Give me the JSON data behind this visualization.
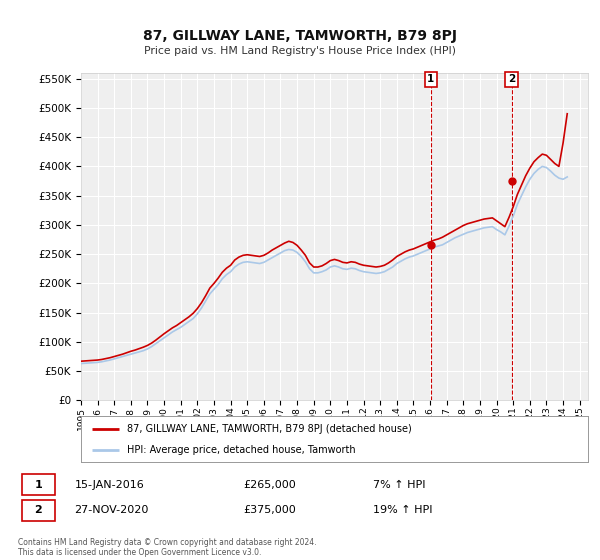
{
  "title": "87, GILLWAY LANE, TAMWORTH, B79 8PJ",
  "subtitle": "Price paid vs. HM Land Registry's House Price Index (HPI)",
  "ytick_values": [
    0,
    50000,
    100000,
    150000,
    200000,
    250000,
    300000,
    350000,
    400000,
    450000,
    500000,
    550000
  ],
  "ylim": [
    0,
    560000
  ],
  "background_color": "#ffffff",
  "plot_bg_color": "#efefef",
  "grid_color": "#ffffff",
  "hpi_color": "#aac8e8",
  "price_color": "#cc0000",
  "transaction1": {
    "date": "15-JAN-2016",
    "price": 265000,
    "label": "1",
    "year": 2016.04
  },
  "transaction2": {
    "date": "27-NOV-2020",
    "price": 375000,
    "label": "2",
    "year": 2020.9
  },
  "legend_label1": "87, GILLWAY LANE, TAMWORTH, B79 8PJ (detached house)",
  "legend_label2": "HPI: Average price, detached house, Tamworth",
  "footer1": "Contains HM Land Registry data © Crown copyright and database right 2024.",
  "footer2": "This data is licensed under the Open Government Licence v3.0.",
  "annotation1_text": "1",
  "annotation2_text": "2",
  "row1_pct": "7% ↑ HPI",
  "row2_pct": "19% ↑ HPI",
  "hpi_data": {
    "years": [
      1995.0,
      1995.25,
      1995.5,
      1995.75,
      1996.0,
      1996.25,
      1996.5,
      1996.75,
      1997.0,
      1997.25,
      1997.5,
      1997.75,
      1998.0,
      1998.25,
      1998.5,
      1998.75,
      1999.0,
      1999.25,
      1999.5,
      1999.75,
      2000.0,
      2000.25,
      2000.5,
      2000.75,
      2001.0,
      2001.25,
      2001.5,
      2001.75,
      2002.0,
      2002.25,
      2002.5,
      2002.75,
      2003.0,
      2003.25,
      2003.5,
      2003.75,
      2004.0,
      2004.25,
      2004.5,
      2004.75,
      2005.0,
      2005.25,
      2005.5,
      2005.75,
      2006.0,
      2006.25,
      2006.5,
      2006.75,
      2007.0,
      2007.25,
      2007.5,
      2007.75,
      2008.0,
      2008.25,
      2008.5,
      2008.75,
      2009.0,
      2009.25,
      2009.5,
      2009.75,
      2010.0,
      2010.25,
      2010.5,
      2010.75,
      2011.0,
      2011.25,
      2011.5,
      2011.75,
      2012.0,
      2012.25,
      2012.5,
      2012.75,
      2013.0,
      2013.25,
      2013.5,
      2013.75,
      2014.0,
      2014.25,
      2014.5,
      2014.75,
      2015.0,
      2015.25,
      2015.5,
      2015.75,
      2016.0,
      2016.25,
      2016.5,
      2016.75,
      2017.0,
      2017.25,
      2017.5,
      2017.75,
      2018.0,
      2018.25,
      2018.5,
      2018.75,
      2019.0,
      2019.25,
      2019.5,
      2019.75,
      2020.0,
      2020.25,
      2020.5,
      2020.75,
      2021.0,
      2021.25,
      2021.5,
      2021.75,
      2022.0,
      2022.25,
      2022.5,
      2022.75,
      2023.0,
      2023.25,
      2023.5,
      2023.75,
      2024.0,
      2024.25
    ],
    "values": [
      63000,
      63500,
      64000,
      64500,
      65000,
      66000,
      67500,
      69000,
      71000,
      73000,
      75000,
      77000,
      79000,
      81000,
      83000,
      85000,
      88000,
      92000,
      97000,
      102000,
      107000,
      112000,
      117000,
      121000,
      125000,
      130000,
      135000,
      140000,
      148000,
      158000,
      170000,
      182000,
      190000,
      198000,
      208000,
      215000,
      220000,
      228000,
      233000,
      236000,
      237000,
      236000,
      235000,
      234000,
      236000,
      240000,
      244000,
      248000,
      252000,
      256000,
      258000,
      257000,
      253000,
      246000,
      237000,
      225000,
      218000,
      218000,
      220000,
      223000,
      228000,
      230000,
      228000,
      225000,
      224000,
      226000,
      225000,
      222000,
      220000,
      219000,
      218000,
      217000,
      218000,
      220000,
      224000,
      228000,
      234000,
      238000,
      242000,
      245000,
      247000,
      250000,
      253000,
      256000,
      259000,
      262000,
      264000,
      266000,
      270000,
      274000,
      278000,
      281000,
      284000,
      287000,
      289000,
      291000,
      293000,
      295000,
      296000,
      297000,
      292000,
      288000,
      283000,
      298000,
      315000,
      335000,
      350000,
      365000,
      378000,
      388000,
      395000,
      400000,
      398000,
      392000,
      385000,
      380000,
      378000,
      382000
    ]
  },
  "price_data": {
    "years": [
      1995.0,
      1995.25,
      1995.5,
      1995.75,
      1996.0,
      1996.25,
      1996.5,
      1996.75,
      1997.0,
      1997.25,
      1997.5,
      1997.75,
      1998.0,
      1998.25,
      1998.5,
      1998.75,
      1999.0,
      1999.25,
      1999.5,
      1999.75,
      2000.0,
      2000.25,
      2000.5,
      2000.75,
      2001.0,
      2001.25,
      2001.5,
      2001.75,
      2002.0,
      2002.25,
      2002.5,
      2002.75,
      2003.0,
      2003.25,
      2003.5,
      2003.75,
      2004.0,
      2004.25,
      2004.5,
      2004.75,
      2005.0,
      2005.25,
      2005.5,
      2005.75,
      2006.0,
      2006.25,
      2006.5,
      2006.75,
      2007.0,
      2007.25,
      2007.5,
      2007.75,
      2008.0,
      2008.25,
      2008.5,
      2008.75,
      2009.0,
      2009.25,
      2009.5,
      2009.75,
      2010.0,
      2010.25,
      2010.5,
      2010.75,
      2011.0,
      2011.25,
      2011.5,
      2011.75,
      2012.0,
      2012.25,
      2012.5,
      2012.75,
      2013.0,
      2013.25,
      2013.5,
      2013.75,
      2014.0,
      2014.25,
      2014.5,
      2014.75,
      2015.0,
      2015.25,
      2015.5,
      2015.75,
      2016.0,
      2016.25,
      2016.5,
      2016.75,
      2017.0,
      2017.25,
      2017.5,
      2017.75,
      2018.0,
      2018.25,
      2018.5,
      2018.75,
      2019.0,
      2019.25,
      2019.5,
      2019.75,
      2020.0,
      2020.25,
      2020.5,
      2020.75,
      2021.0,
      2021.25,
      2021.5,
      2021.75,
      2022.0,
      2022.25,
      2022.5,
      2022.75,
      2023.0,
      2023.25,
      2023.5,
      2023.75,
      2024.0,
      2024.25
    ],
    "values": [
      67000,
      67500,
      68000,
      68500,
      69000,
      70000,
      71500,
      73000,
      75000,
      77000,
      79000,
      81500,
      84000,
      86000,
      88500,
      91000,
      94000,
      98000,
      103000,
      108500,
      114000,
      119000,
      124000,
      128000,
      133000,
      138000,
      143000,
      149000,
      157000,
      167000,
      179000,
      192000,
      200000,
      209000,
      219000,
      226000,
      231000,
      240000,
      245000,
      248000,
      249000,
      248000,
      247000,
      246000,
      248000,
      252000,
      257000,
      261000,
      265000,
      269000,
      272000,
      270000,
      265000,
      257000,
      248000,
      235000,
      228000,
      228000,
      230000,
      234000,
      239000,
      241000,
      239000,
      236000,
      235000,
      237000,
      236000,
      233000,
      231000,
      230000,
      229000,
      228000,
      229000,
      231000,
      235000,
      240000,
      246000,
      250000,
      254000,
      257000,
      259000,
      262000,
      265000,
      268000,
      271000,
      274000,
      276000,
      279000,
      283000,
      287000,
      291000,
      295000,
      299000,
      302000,
      304000,
      306000,
      308000,
      310000,
      311000,
      312000,
      307000,
      302000,
      297000,
      313000,
      331000,
      352000,
      368000,
      384000,
      397000,
      408000,
      415000,
      421000,
      419000,
      412000,
      405000,
      400000,
      440000,
      490000
    ]
  }
}
